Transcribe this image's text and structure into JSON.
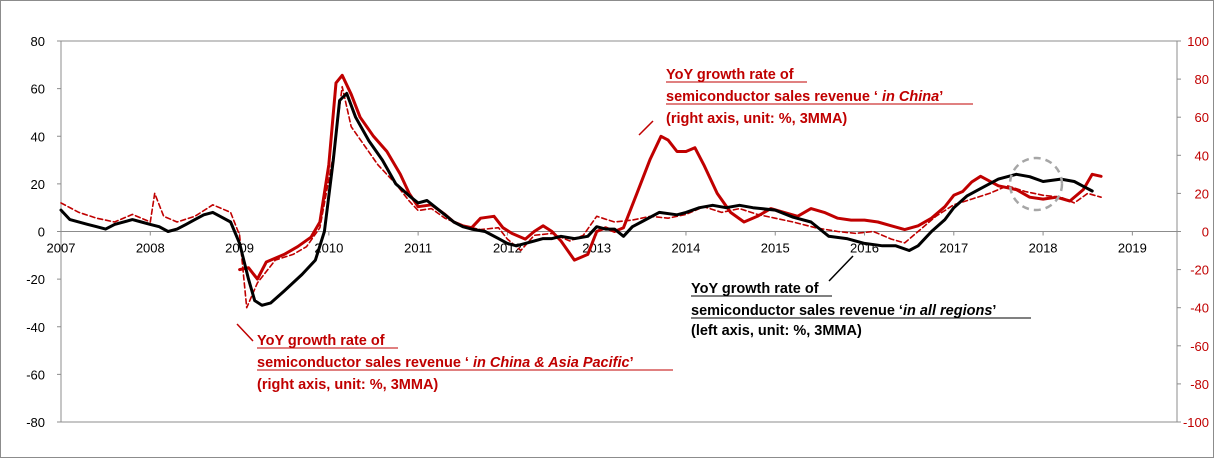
{
  "chart_data": {
    "type": "line",
    "title": "",
    "x_range": [
      2007,
      2019.5
    ],
    "x_ticks": [
      "2007",
      "2008",
      "2009",
      "2010",
      "2011",
      "2012",
      "2013",
      "2014",
      "2015",
      "2016",
      "2017",
      "2018",
      "2019"
    ],
    "y_left": {
      "range": [
        -80,
        80
      ],
      "ticks": [
        "80",
        "60",
        "40",
        "20",
        "0",
        "-20",
        "-40",
        "-60",
        "-80"
      ]
    },
    "y_right": {
      "range": [
        -100,
        100
      ],
      "ticks": [
        "100",
        "80",
        "60",
        "40",
        "20",
        "0",
        "-20",
        "-40",
        "-60",
        "-80",
        "-100"
      ]
    },
    "grid": false,
    "colors": {
      "all_regions": "#000000",
      "china": "#c00000",
      "china_ap": "#c00000",
      "highlight_circle": "#a6a6a6"
    },
    "series": [
      {
        "key": "all_regions",
        "axis": "left",
        "style": "solid",
        "points": [
          [
            2007.0,
            9
          ],
          [
            2007.1,
            5
          ],
          [
            2007.3,
            3
          ],
          [
            2007.4,
            2
          ],
          [
            2007.5,
            1
          ],
          [
            2007.6,
            3
          ],
          [
            2007.8,
            5
          ],
          [
            2007.9,
            4
          ],
          [
            2008.0,
            3
          ],
          [
            2008.1,
            2
          ],
          [
            2008.2,
            0
          ],
          [
            2008.3,
            1
          ],
          [
            2008.4,
            3
          ],
          [
            2008.5,
            5
          ],
          [
            2008.6,
            7
          ],
          [
            2008.7,
            8
          ],
          [
            2008.8,
            6
          ],
          [
            2008.9,
            4
          ],
          [
            2009.0,
            -5
          ],
          [
            2009.1,
            -20
          ],
          [
            2009.17,
            -29
          ],
          [
            2009.25,
            -31
          ],
          [
            2009.35,
            -30
          ],
          [
            2009.5,
            -25
          ],
          [
            2009.7,
            -18
          ],
          [
            2009.85,
            -12
          ],
          [
            2009.95,
            0
          ],
          [
            2010.05,
            30
          ],
          [
            2010.12,
            55
          ],
          [
            2010.2,
            58
          ],
          [
            2010.3,
            48
          ],
          [
            2010.45,
            38
          ],
          [
            2010.6,
            30
          ],
          [
            2010.75,
            20
          ],
          [
            2010.9,
            15
          ],
          [
            2011.0,
            12
          ],
          [
            2011.1,
            13
          ],
          [
            2011.2,
            10
          ],
          [
            2011.3,
            7
          ],
          [
            2011.4,
            4
          ],
          [
            2011.5,
            2
          ],
          [
            2011.6,
            1
          ],
          [
            2011.75,
            0
          ],
          [
            2011.9,
            -3
          ],
          [
            2012.0,
            -5
          ],
          [
            2012.1,
            -6
          ],
          [
            2012.2,
            -5
          ],
          [
            2012.3,
            -4
          ],
          [
            2012.4,
            -3
          ],
          [
            2012.5,
            -3
          ],
          [
            2012.6,
            -2
          ],
          [
            2012.75,
            -3
          ],
          [
            2012.9,
            -2
          ],
          [
            2013.0,
            2
          ],
          [
            2013.1,
            1
          ],
          [
            2013.2,
            1
          ],
          [
            2013.3,
            -2
          ],
          [
            2013.4,
            2
          ],
          [
            2013.5,
            4
          ],
          [
            2013.7,
            8
          ],
          [
            2013.9,
            7
          ],
          [
            2014.0,
            8
          ],
          [
            2014.15,
            10
          ],
          [
            2014.3,
            11
          ],
          [
            2014.45,
            10
          ],
          [
            2014.6,
            11
          ],
          [
            2014.75,
            10
          ],
          [
            2015.0,
            9
          ],
          [
            2015.2,
            6
          ],
          [
            2015.4,
            4
          ],
          [
            2015.6,
            -2
          ],
          [
            2015.8,
            -3
          ],
          [
            2016.0,
            -5
          ],
          [
            2016.2,
            -6
          ],
          [
            2016.35,
            -6
          ],
          [
            2016.5,
            -8
          ],
          [
            2016.6,
            -6
          ],
          [
            2016.75,
            0
          ],
          [
            2016.9,
            5
          ],
          [
            2017.0,
            10
          ],
          [
            2017.15,
            15
          ],
          [
            2017.3,
            18
          ],
          [
            2017.5,
            22
          ],
          [
            2017.7,
            24
          ],
          [
            2017.85,
            23
          ],
          [
            2018.0,
            21
          ],
          [
            2018.2,
            22
          ],
          [
            2018.35,
            21
          ],
          [
            2018.45,
            19
          ],
          [
            2018.55,
            17
          ]
        ]
      },
      {
        "key": "china",
        "axis": "right",
        "style": "solid",
        "points": [
          [
            2009.0,
            -20
          ],
          [
            2009.1,
            -19
          ],
          [
            2009.2,
            -25
          ],
          [
            2009.3,
            -16
          ],
          [
            2009.5,
            -12
          ],
          [
            2009.65,
            -8
          ],
          [
            2009.8,
            -3
          ],
          [
            2009.9,
            5
          ],
          [
            2010.0,
            35
          ],
          [
            2010.08,
            78
          ],
          [
            2010.15,
            82
          ],
          [
            2010.25,
            72
          ],
          [
            2010.35,
            60
          ],
          [
            2010.5,
            50
          ],
          [
            2010.65,
            42
          ],
          [
            2010.8,
            30
          ],
          [
            2010.9,
            20
          ],
          [
            2011.0,
            13
          ],
          [
            2011.15,
            14
          ],
          [
            2011.3,
            9
          ],
          [
            2011.4,
            5
          ],
          [
            2011.5,
            3
          ],
          [
            2011.6,
            2
          ],
          [
            2011.7,
            7
          ],
          [
            2011.85,
            8
          ],
          [
            2011.95,
            2
          ],
          [
            2012.05,
            -1
          ],
          [
            2012.2,
            -4
          ],
          [
            2012.3,
            0
          ],
          [
            2012.4,
            3
          ],
          [
            2012.5,
            0
          ],
          [
            2012.6,
            -5
          ],
          [
            2012.75,
            -15
          ],
          [
            2012.9,
            -12
          ],
          [
            2013.0,
            0
          ],
          [
            2013.1,
            2
          ],
          [
            2013.2,
            0
          ],
          [
            2013.3,
            2
          ],
          [
            2013.45,
            20
          ],
          [
            2013.6,
            38
          ],
          [
            2013.72,
            50
          ],
          [
            2013.8,
            48
          ],
          [
            2013.9,
            42
          ],
          [
            2014.0,
            42
          ],
          [
            2014.1,
            44
          ],
          [
            2014.2,
            35
          ],
          [
            2014.35,
            20
          ],
          [
            2014.5,
            10
          ],
          [
            2014.65,
            5
          ],
          [
            2014.8,
            8
          ],
          [
            2014.95,
            12
          ],
          [
            2015.1,
            10
          ],
          [
            2015.25,
            8
          ],
          [
            2015.4,
            12
          ],
          [
            2015.55,
            10
          ],
          [
            2015.7,
            7
          ],
          [
            2015.85,
            6
          ],
          [
            2016.0,
            6
          ],
          [
            2016.15,
            5
          ],
          [
            2016.3,
            3
          ],
          [
            2016.45,
            1
          ],
          [
            2016.6,
            3
          ],
          [
            2016.75,
            7
          ],
          [
            2016.9,
            13
          ],
          [
            2017.0,
            19
          ],
          [
            2017.1,
            21
          ],
          [
            2017.2,
            26
          ],
          [
            2017.3,
            29
          ],
          [
            2017.5,
            24
          ],
          [
            2017.7,
            22
          ],
          [
            2017.85,
            18
          ],
          [
            2018.0,
            17
          ],
          [
            2018.15,
            18
          ],
          [
            2018.3,
            16
          ],
          [
            2018.45,
            22
          ],
          [
            2018.55,
            30
          ],
          [
            2018.65,
            29
          ]
        ]
      },
      {
        "key": "china_ap",
        "axis": "right",
        "style": "dashed",
        "points": [
          [
            2007.0,
            15
          ],
          [
            2007.2,
            10
          ],
          [
            2007.4,
            7
          ],
          [
            2007.6,
            5
          ],
          [
            2007.8,
            9
          ],
          [
            2008.0,
            5
          ],
          [
            2008.05,
            20
          ],
          [
            2008.15,
            8
          ],
          [
            2008.3,
            5
          ],
          [
            2008.5,
            8
          ],
          [
            2008.7,
            14
          ],
          [
            2008.9,
            10
          ],
          [
            2009.0,
            -2
          ],
          [
            2009.08,
            -40
          ],
          [
            2009.2,
            -27
          ],
          [
            2009.4,
            -15
          ],
          [
            2009.6,
            -12
          ],
          [
            2009.75,
            -8
          ],
          [
            2009.9,
            2
          ],
          [
            2010.05,
            40
          ],
          [
            2010.15,
            76
          ],
          [
            2010.25,
            55
          ],
          [
            2010.4,
            45
          ],
          [
            2010.55,
            35
          ],
          [
            2010.75,
            25
          ],
          [
            2010.9,
            16
          ],
          [
            2011.0,
            11
          ],
          [
            2011.15,
            12
          ],
          [
            2011.3,
            7
          ],
          [
            2011.5,
            3
          ],
          [
            2011.7,
            1
          ],
          [
            2011.9,
            2
          ],
          [
            2012.0,
            -4
          ],
          [
            2012.15,
            -10
          ],
          [
            2012.3,
            -2
          ],
          [
            2012.5,
            -1
          ],
          [
            2012.7,
            -5
          ],
          [
            2012.85,
            -2
          ],
          [
            2013.0,
            8
          ],
          [
            2013.2,
            5
          ],
          [
            2013.4,
            6
          ],
          [
            2013.6,
            8
          ],
          [
            2013.8,
            7
          ],
          [
            2014.0,
            9
          ],
          [
            2014.2,
            13
          ],
          [
            2014.4,
            10
          ],
          [
            2014.6,
            12
          ],
          [
            2014.8,
            9
          ],
          [
            2015.0,
            7
          ],
          [
            2015.2,
            5
          ],
          [
            2015.45,
            2
          ],
          [
            2015.7,
            0
          ],
          [
            2015.9,
            -1
          ],
          [
            2016.1,
            0
          ],
          [
            2016.3,
            -4
          ],
          [
            2016.45,
            -6
          ],
          [
            2016.6,
            0
          ],
          [
            2016.8,
            8
          ],
          [
            2017.0,
            14
          ],
          [
            2017.2,
            17
          ],
          [
            2017.4,
            20
          ],
          [
            2017.6,
            24
          ],
          [
            2017.8,
            21
          ],
          [
            2018.0,
            19
          ],
          [
            2018.2,
            18
          ],
          [
            2018.35,
            15
          ],
          [
            2018.5,
            20
          ],
          [
            2018.65,
            18
          ]
        ]
      }
    ],
    "annotations": {
      "china": {
        "title_line1": "YoY growth rate of",
        "title_line2_prefix": "semiconductor sales revenue ‘",
        "title_line2_italic": " in China",
        "title_line2_suffix": "’",
        "note": "(right  axis, unit: %, 3MMA)"
      },
      "all_regions": {
        "title_line1": "YoY growth rate of",
        "title_line2_prefix": "semiconductor sales revenue ‘",
        "title_line2_italic": "in all regions",
        "title_line2_suffix": "’",
        "note": "(left  axis, unit: %, 3MMA)"
      },
      "china_ap": {
        "title_line1": "YoY growth rate of",
        "title_line2_prefix": "semiconductor sales revenue ‘",
        "title_line2_italic": " in China  & Asia Pacific",
        "title_line2_suffix": "’",
        "note": "(right  axis, unit: %, 3MMA)"
      }
    }
  }
}
